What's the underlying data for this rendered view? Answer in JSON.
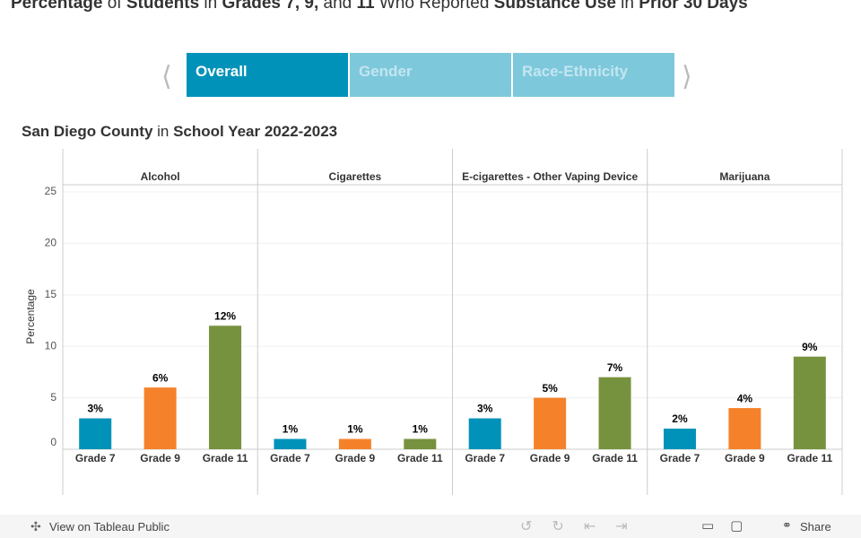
{
  "title": [
    {
      "text": "Percentage",
      "bold": true
    },
    {
      "text": " of ",
      "bold": false
    },
    {
      "text": "Students",
      "bold": true
    },
    {
      "text": " in ",
      "bold": false
    },
    {
      "text": "Grades 7, 9,",
      "bold": true
    },
    {
      "text": " and ",
      "bold": false
    },
    {
      "text": "11",
      "bold": true
    },
    {
      "text": " Who Reported ",
      "bold": false
    },
    {
      "text": "Substance Use",
      "bold": true
    },
    {
      "text": " in ",
      "bold": false
    },
    {
      "text": "Prior 30 Days",
      "bold": true
    }
  ],
  "tabs": [
    {
      "label": "Overall",
      "active": true
    },
    {
      "label": "Gender",
      "active": false
    },
    {
      "label": "Race-Ethnicity",
      "active": false
    }
  ],
  "subtitle": [
    {
      "text": "San Diego County",
      "bold": true
    },
    {
      "text": " in ",
      "bold": false
    },
    {
      "text": "School Year 2022-2023",
      "bold": true
    }
  ],
  "chart_data": {
    "type": "bar",
    "y_label": "Percentage",
    "categories": [
      "Grade 7",
      "Grade 9",
      "Grade 11"
    ],
    "colors": [
      "#0092b8",
      "#f5822a",
      "#77923f"
    ],
    "panels": [
      {
        "name": "Alcohol",
        "values": [
          3,
          6,
          12
        ],
        "value_labels": [
          "3%",
          "6%",
          "12%"
        ]
      },
      {
        "name": "Cigarettes",
        "values": [
          1,
          1,
          1
        ],
        "value_labels": [
          "1%",
          "1%",
          "1%"
        ]
      },
      {
        "name": "E-cigarettes - Other Vaping Device",
        "values": [
          3,
          5,
          7
        ],
        "value_labels": [
          "3%",
          "5%",
          "7%"
        ]
      },
      {
        "name": "Marijuana",
        "values": [
          2,
          4,
          9
        ],
        "value_labels": [
          "2%",
          "4%",
          "9%"
        ]
      }
    ],
    "ylim": [
      0,
      25.7
    ],
    "yticks": [
      0,
      5,
      10,
      15,
      20,
      25
    ],
    "grid": true
  },
  "toolbar": {
    "view_link": "View on Tableau Public",
    "share": "Share"
  }
}
